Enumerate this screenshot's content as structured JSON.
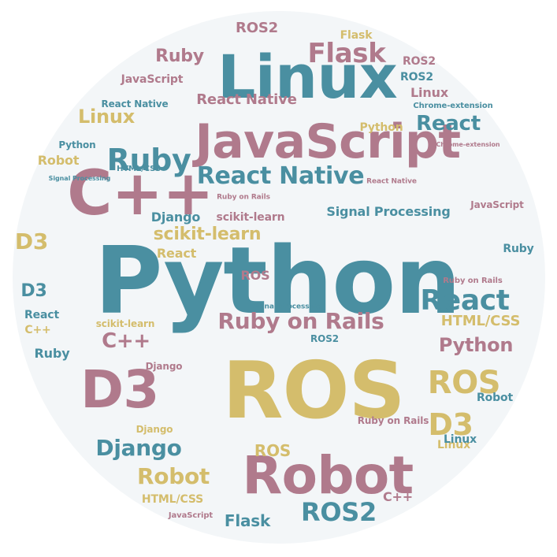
{
  "colors": {
    "background": "#ffffff",
    "circle": "#f3f6f8",
    "teal": "#4a8fa1",
    "mauve": "#b07a8c",
    "gold": "#d4bd6c"
  },
  "words": [
    {
      "text": "Python",
      "color": "teal"
    },
    {
      "text": "ROS",
      "color": "gold"
    },
    {
      "text": "Linux",
      "color": "teal"
    },
    {
      "text": "JavaScript",
      "color": "mauve"
    },
    {
      "text": "C++",
      "color": "mauve"
    },
    {
      "text": "Robot",
      "color": "mauve"
    },
    {
      "text": "D3",
      "color": "mauve"
    },
    {
      "text": "Flask",
      "color": "mauve"
    },
    {
      "text": "Ruby",
      "color": "teal"
    },
    {
      "text": "React Native",
      "color": "teal"
    },
    {
      "text": "React",
      "color": "teal"
    },
    {
      "text": "Ruby on Rails",
      "color": "mauve"
    },
    {
      "text": "Python",
      "color": "mauve"
    },
    {
      "text": "ROS",
      "color": "gold"
    },
    {
      "text": "D3",
      "color": "gold"
    },
    {
      "text": "ROS2",
      "color": "teal"
    },
    {
      "text": "Django",
      "color": "teal"
    },
    {
      "text": "Robot",
      "color": "gold"
    },
    {
      "text": "scikit-learn",
      "color": "gold"
    },
    {
      "text": "Signal Processing",
      "color": "teal"
    },
    {
      "text": "React",
      "color": "teal"
    },
    {
      "text": "Linux",
      "color": "gold"
    },
    {
      "text": "Ruby",
      "color": "mauve"
    },
    {
      "text": "ROS2",
      "color": "mauve"
    },
    {
      "text": "JavaScript",
      "color": "mauve"
    },
    {
      "text": "React Native",
      "color": "mauve"
    },
    {
      "text": "React Native",
      "color": "teal"
    },
    {
      "text": "Linux",
      "color": "mauve"
    },
    {
      "text": "Python",
      "color": "gold"
    },
    {
      "text": "Chrome-extension",
      "color": "teal"
    },
    {
      "text": "Chrome-extension",
      "color": "mauve"
    },
    {
      "text": "Python",
      "color": "teal"
    },
    {
      "text": "Robot",
      "color": "gold"
    },
    {
      "text": "HTML/CSS",
      "color": "teal"
    },
    {
      "text": "Signal Processing",
      "color": "teal"
    },
    {
      "text": "React Native",
      "color": "mauve"
    },
    {
      "text": "Ruby on Rails",
      "color": "mauve"
    },
    {
      "text": "Django",
      "color": "teal"
    },
    {
      "text": "scikit-learn",
      "color": "mauve"
    },
    {
      "text": "JavaScript",
      "color": "mauve"
    },
    {
      "text": "React",
      "color": "gold"
    },
    {
      "text": "D3",
      "color": "gold"
    },
    {
      "text": "ROS",
      "color": "mauve"
    },
    {
      "text": "D3",
      "color": "teal"
    },
    {
      "text": "Ruby",
      "color": "teal"
    },
    {
      "text": "Ruby on Rails",
      "color": "mauve"
    },
    {
      "text": "Signal Processing",
      "color": "teal"
    },
    {
      "text": "React",
      "color": "teal"
    },
    {
      "text": "HTML/CSS",
      "color": "gold"
    },
    {
      "text": "C++",
      "color": "gold"
    },
    {
      "text": "scikit-learn",
      "color": "gold"
    },
    {
      "text": "C++",
      "color": "mauve"
    },
    {
      "text": "ROS2",
      "color": "teal"
    },
    {
      "text": "Ruby",
      "color": "teal"
    },
    {
      "text": "Django",
      "color": "mauve"
    },
    {
      "text": "Robot",
      "color": "teal"
    },
    {
      "text": "Ruby on Rails",
      "color": "mauve"
    },
    {
      "text": "Linux",
      "color": "gold"
    },
    {
      "text": "ROS",
      "color": "gold"
    },
    {
      "text": "HTML/CSS",
      "color": "gold"
    },
    {
      "text": "C++",
      "color": "mauve"
    },
    {
      "text": "JavaScript",
      "color": "mauve"
    },
    {
      "text": "Flask",
      "color": "teal"
    },
    {
      "text": "ROS2",
      "color": "teal"
    },
    {
      "text": "ROS2",
      "color": "mauve"
    },
    {
      "text": "Flask",
      "color": "gold"
    },
    {
      "text": "Linux",
      "color": "teal"
    },
    {
      "text": "Django",
      "color": "gold"
    }
  ]
}
